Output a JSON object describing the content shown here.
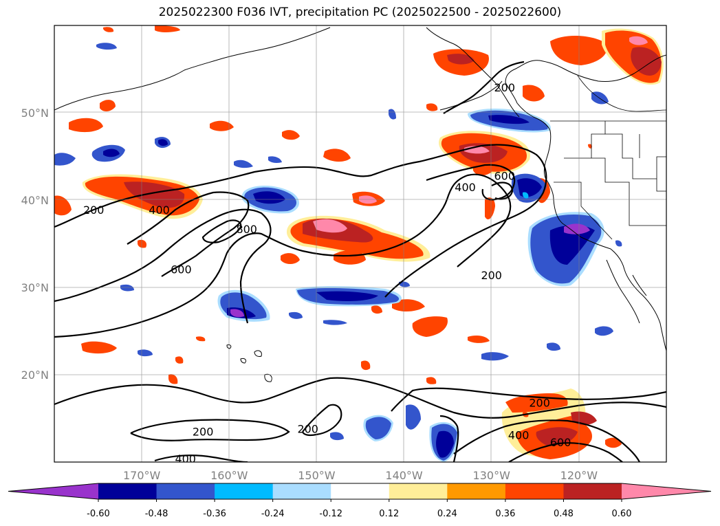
{
  "title": "2025022300 F036 IVT, precipitation PC (2025022500 - 2025022600)",
  "map": {
    "lat_labels": [
      "50°N",
      "40°N",
      "30°N",
      "20°N"
    ],
    "lon_labels": [
      "170°W",
      "160°W",
      "150°W",
      "140°W",
      "130°W",
      "120°W"
    ],
    "lat_values": [
      50,
      40,
      30,
      20
    ],
    "lon_values": [
      -170,
      -160,
      -150,
      -140,
      -130,
      -120
    ],
    "lon_range": [
      -180,
      -110
    ],
    "lat_range": [
      10,
      60
    ],
    "grid": true,
    "ivt_contour_labels": [
      {
        "text": "200",
        "lon": -175.5,
        "lat": 38.9
      },
      {
        "text": "400",
        "lon": -168.0,
        "lat": 38.9
      },
      {
        "text": "800",
        "lon": -158.0,
        "lat": 36.7
      },
      {
        "text": "600",
        "lon": -165.5,
        "lat": 32.1
      },
      {
        "text": "400",
        "lon": -133.0,
        "lat": 41.5
      },
      {
        "text": "600",
        "lon": -128.5,
        "lat": 42.8
      },
      {
        "text": "200",
        "lon": -130.0,
        "lat": 31.4
      },
      {
        "text": "200",
        "lon": -128.5,
        "lat": 52.9
      },
      {
        "text": "200",
        "lon": -124.5,
        "lat": 16.8
      },
      {
        "text": "400",
        "lon": -126.9,
        "lat": 13.1
      },
      {
        "text": "600",
        "lon": -122.1,
        "lat": 12.3
      },
      {
        "text": "200",
        "lon": -163.0,
        "lat": 13.5
      },
      {
        "text": "200",
        "lon": -151.0,
        "lat": 13.8
      },
      {
        "text": "400",
        "lon": -165.0,
        "lat": 10.4
      }
    ]
  },
  "colorbar": {
    "ticks": [
      "-0.60",
      "-0.48",
      "-0.36",
      "-0.24",
      "-0.12",
      "0.12",
      "0.24",
      "0.36",
      "0.48",
      "0.60"
    ],
    "colors": [
      "#9933cc",
      "#000099",
      "#3355cc",
      "#00bbff",
      "#aaddff",
      "#ffffff",
      "#ffee99",
      "#ff9900",
      "#ff4400",
      "#bb2222",
      "#ff88aa"
    ]
  }
}
